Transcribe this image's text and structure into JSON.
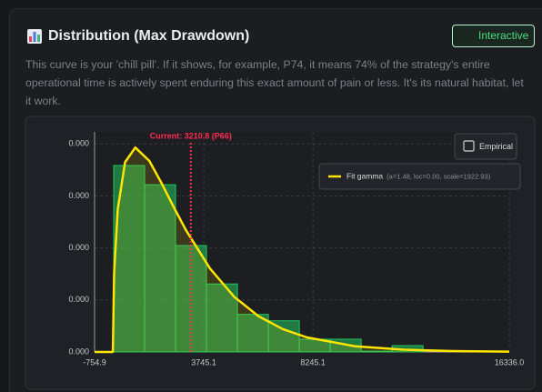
{
  "header": {
    "title": "Distribution (Max Drawdown)",
    "button": "Interactive",
    "description": "This curve is your 'chill pill'. If it shows, for example, P74, it means 74% of the strategy's entire operational time is actively spent enduring this exact amount of pain or less. It's its natural habitat, let it work."
  },
  "chart_data": {
    "type": "histogram",
    "bins": [
      32.6,
      1307.6,
      2582.6,
      3857.6,
      5132.6,
      6407.6,
      7682.6,
      8957.6,
      10232.6,
      11507.6,
      12782.6
    ],
    "series": [
      {
        "name": "Empirical",
        "color": "#22c55e",
        "values": [
          0.000233,
          0.000209,
          0.000133,
          8.5e-05,
          4.7e-05,
          3.9e-05,
          1.6e-05,
          1.6e-05,
          1e-06,
          8e-06
        ]
      },
      {
        "name": "Fit gamma",
        "params": "(a=1.48, loc=0.00, scale=1922.93)",
        "type": "line",
        "color": "#ffe600",
        "x": [
          -754.9,
          0,
          50,
          200,
          500,
          923,
          1500,
          2000,
          2500,
          3000,
          4000,
          5000,
          6000,
          7000,
          8000,
          10000,
          12000,
          14000,
          16336
        ],
        "values": [
          0,
          0,
          9.9e-05,
          0.0001785,
          0.0002371,
          0.0002554,
          0.0002387,
          0.0002113,
          0.0001816,
          0.0001527,
          0.0001043,
          6.9e-05,
          4.48e-05,
          2.86e-05,
          1.82e-05,
          7.1e-06,
          2.8e-06,
          1.1e-06,
          4e-07
        ]
      }
    ],
    "annotation": {
      "x": 3210.8,
      "label": "Current: 3210.8 (P66)",
      "color": "#ff2d55"
    },
    "xlim": [
      -754.9,
      16336.0
    ],
    "xticks": [
      -754.9,
      3745.1,
      8245.1,
      {
        "value": 16336.0,
        "label": "16336.0"
      }
    ],
    "ylim": [
      0,
      0.000275
    ],
    "yticks": [
      {
        "value": 0,
        "label": "0.000"
      },
      {
        "value": 6.5e-05,
        "label": "0.000"
      },
      {
        "value": 0.00013,
        "label": "0.000"
      },
      {
        "value": 0.000195,
        "label": "0.000"
      },
      {
        "value": 0.00026,
        "label": "0.000"
      }
    ],
    "grid": true
  }
}
